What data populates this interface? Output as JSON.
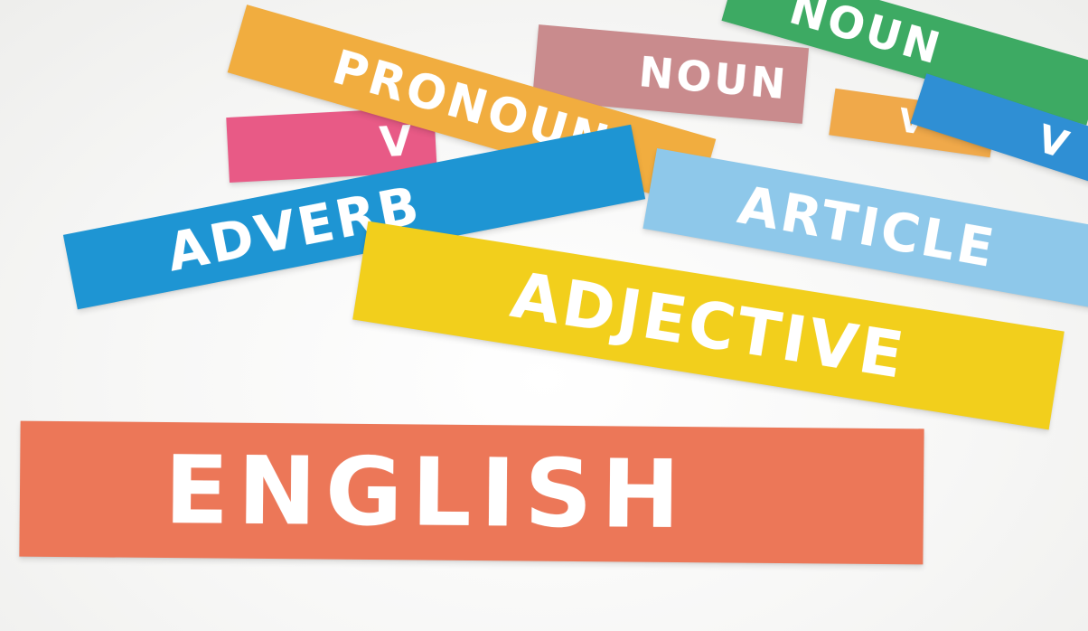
{
  "scene": {
    "description_colors": {
      "background": "#f6f6f5"
    },
    "cards": [
      {
        "id": "noun-green",
        "text": "NOUN",
        "color": "#3daa63"
      },
      {
        "id": "orange-back",
        "text": "V",
        "color": "#f0a94a"
      },
      {
        "id": "blue-back",
        "text": "V",
        "color": "#2f8fd4"
      },
      {
        "id": "noun-rose",
        "text": "NOUN",
        "color": "#c98b8d"
      },
      {
        "id": "verb-pink",
        "text": "V",
        "color": "#e85a86"
      },
      {
        "id": "pronoun",
        "text": "PRONOUN",
        "color": "#f1ad3f"
      },
      {
        "id": "adverb",
        "text": "ADVERB",
        "color": "#1e95d3"
      },
      {
        "id": "article",
        "text": "ARTICLE",
        "color": "#8ec8ea"
      },
      {
        "id": "adjective",
        "text": "ADJECTIVE",
        "color": "#f2cf1c"
      },
      {
        "id": "english",
        "text": "ENGLISH",
        "color": "#ec7758"
      }
    ]
  }
}
